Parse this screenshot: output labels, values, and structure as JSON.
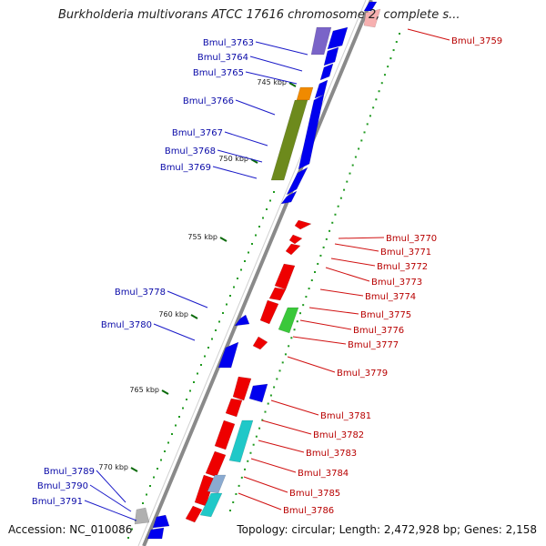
{
  "title": "Burkholderia multivorans ATCC 17616 chromosome 2, complete s...",
  "accession": "Accession: NC_010086",
  "topology": "Topology: circular; Length: 2,472,928 bp; Genes: 2,158",
  "colors": {
    "forward": "#0000ee",
    "reverse": "#ee0000",
    "label_forward": "#0a0aa8",
    "label_reverse": "#b80000"
  },
  "ticks": [
    "745 kbp",
    "750 kbp",
    "755 kbp",
    "760 kbp",
    "765 kbp",
    "770 kbp"
  ],
  "forward_labels": [
    "Bmul_3763",
    "Bmul_3764",
    "Bmul_3765",
    "Bmul_3766",
    "Bmul_3767",
    "Bmul_3768",
    "Bmul_3769",
    "Bmul_3778",
    "Bmul_3780",
    "Bmul_3789",
    "Bmul_3790",
    "Bmul_3791"
  ],
  "reverse_labels": [
    "Bmul_3759",
    "Bmul_3770",
    "Bmul_3771",
    "Bmul_3772",
    "Bmul_3773",
    "Bmul_3774",
    "Bmul_3775",
    "Bmul_3776",
    "Bmul_3777",
    "Bmul_3779",
    "Bmul_3781",
    "Bmul_3782",
    "Bmul_3783",
    "Bmul_3784",
    "Bmul_3785",
    "Bmul_3786"
  ]
}
